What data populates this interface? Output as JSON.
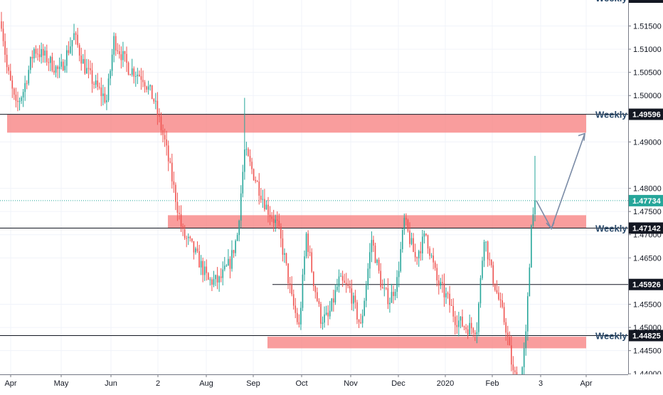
{
  "chart_data": {
    "type": "candlestick",
    "colors": {
      "up": "#26a69a",
      "down": "#ef5350",
      "zone": "#f77c7c",
      "arrow": "#7a8ba6",
      "last_price": "#26a69a"
    },
    "ylim": [
      1.4362,
      1.5206
    ],
    "y_ticks": [
      "1.51500",
      "1.51000",
      "1.50500",
      "1.50000",
      "1.49000",
      "1.48000",
      "1.47500",
      "1.47000",
      "1.46500",
      "1.45500",
      "1.45000",
      "1.44500",
      "1.44000"
    ],
    "x_ticks": [
      "Apr",
      "May",
      "Jun",
      "2",
      "Aug",
      "Sep",
      "Oct",
      "Nov",
      "Dec",
      "2020",
      "Feb",
      "3",
      "Apr"
    ],
    "levels": [
      {
        "value": 1.49596,
        "label": "1.49596",
        "tag": "Weekly"
      },
      {
        "value": 1.47142,
        "label": "1.47142",
        "tag": "Weekly"
      },
      {
        "value": 1.45926,
        "label": "1.45926",
        "tag": ""
      },
      {
        "value": 1.44825,
        "label": "1.44825",
        "tag": "Weekly"
      }
    ],
    "top_tag": "Weekly",
    "last_price": {
      "value": 1.47734,
      "label": "1.47734"
    },
    "zones": [
      {
        "from": "Apr",
        "to": "Apr",
        "y_top": 1.4959,
        "y_bottom": 1.492
      },
      {
        "from": "2",
        "to": "Apr",
        "y_top": 1.4742,
        "y_bottom": 1.4715
      },
      {
        "from": "Sep",
        "to": "Apr",
        "y_top": 1.448,
        "y_bottom": 1.4455
      }
    ],
    "projection": {
      "points": [
        1.4773,
        1.4713,
        1.4918
      ]
    },
    "candle_count": 270
  }
}
